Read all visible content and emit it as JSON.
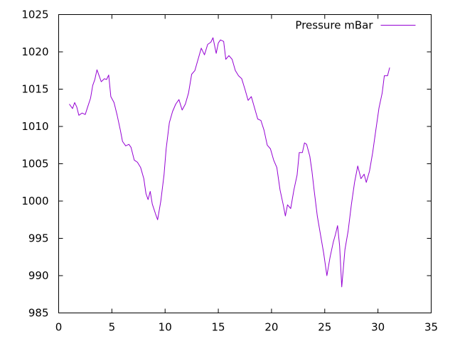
{
  "chart_data": {
    "type": "line",
    "title": "",
    "xlabel": "",
    "ylabel": "",
    "xlim": [
      0,
      35
    ],
    "ylim": [
      985,
      1025
    ],
    "xticks": [
      0,
      5,
      10,
      15,
      20,
      25,
      30,
      35
    ],
    "yticks": [
      985,
      990,
      995,
      1000,
      1005,
      1010,
      1015,
      1020,
      1025
    ],
    "grid": false,
    "legend_position": "top-right",
    "series": [
      {
        "name": "Pressure mBar",
        "color": "#9400d3",
        "points": [
          [
            1.0,
            1013.0
          ],
          [
            1.3,
            1012.4
          ],
          [
            1.5,
            1013.2
          ],
          [
            1.7,
            1012.6
          ],
          [
            1.9,
            1011.5
          ],
          [
            2.2,
            1011.8
          ],
          [
            2.5,
            1011.6
          ],
          [
            2.7,
            1012.5
          ],
          [
            3.0,
            1013.8
          ],
          [
            3.2,
            1015.5
          ],
          [
            3.4,
            1016.3
          ],
          [
            3.6,
            1017.6
          ],
          [
            3.8,
            1016.8
          ],
          [
            4.0,
            1016.0
          ],
          [
            4.3,
            1016.4
          ],
          [
            4.5,
            1016.3
          ],
          [
            4.7,
            1016.9
          ],
          [
            4.9,
            1014.0
          ],
          [
            5.2,
            1013.2
          ],
          [
            5.5,
            1011.5
          ],
          [
            5.8,
            1009.5
          ],
          [
            6.0,
            1008.0
          ],
          [
            6.3,
            1007.4
          ],
          [
            6.6,
            1007.6
          ],
          [
            6.8,
            1007.2
          ],
          [
            7.1,
            1005.5
          ],
          [
            7.4,
            1005.2
          ],
          [
            7.7,
            1004.5
          ],
          [
            8.0,
            1003.0
          ],
          [
            8.2,
            1001.0
          ],
          [
            8.4,
            1000.2
          ],
          [
            8.6,
            1001.3
          ],
          [
            8.8,
            999.6
          ],
          [
            9.1,
            998.3
          ],
          [
            9.3,
            997.5
          ],
          [
            9.6,
            1000.0
          ],
          [
            9.9,
            1003.5
          ],
          [
            10.1,
            1007.0
          ],
          [
            10.4,
            1010.5
          ],
          [
            10.7,
            1012.0
          ],
          [
            11.0,
            1013.0
          ],
          [
            11.3,
            1013.6
          ],
          [
            11.6,
            1012.2
          ],
          [
            11.9,
            1013.0
          ],
          [
            12.2,
            1014.5
          ],
          [
            12.5,
            1017.0
          ],
          [
            12.8,
            1017.5
          ],
          [
            13.1,
            1019.0
          ],
          [
            13.4,
            1020.5
          ],
          [
            13.7,
            1019.6
          ],
          [
            14.0,
            1021.0
          ],
          [
            14.3,
            1021.3
          ],
          [
            14.5,
            1021.9
          ],
          [
            14.8,
            1019.8
          ],
          [
            15.0,
            1021.2
          ],
          [
            15.2,
            1021.6
          ],
          [
            15.5,
            1021.4
          ],
          [
            15.7,
            1019.0
          ],
          [
            16.0,
            1019.5
          ],
          [
            16.3,
            1019.0
          ],
          [
            16.6,
            1017.5
          ],
          [
            16.9,
            1016.8
          ],
          [
            17.2,
            1016.4
          ],
          [
            17.5,
            1015.0
          ],
          [
            17.8,
            1013.5
          ],
          [
            18.1,
            1014.0
          ],
          [
            18.4,
            1012.5
          ],
          [
            18.7,
            1011.0
          ],
          [
            19.0,
            1010.8
          ],
          [
            19.3,
            1009.5
          ],
          [
            19.6,
            1007.5
          ],
          [
            19.9,
            1007.0
          ],
          [
            20.2,
            1005.5
          ],
          [
            20.5,
            1004.5
          ],
          [
            20.8,
            1001.5
          ],
          [
            21.1,
            999.5
          ],
          [
            21.3,
            998.0
          ],
          [
            21.5,
            999.5
          ],
          [
            21.8,
            999.0
          ],
          [
            22.1,
            1001.5
          ],
          [
            22.4,
            1003.5
          ],
          [
            22.6,
            1006.5
          ],
          [
            22.9,
            1006.5
          ],
          [
            23.1,
            1007.8
          ],
          [
            23.3,
            1007.6
          ],
          [
            23.6,
            1006.0
          ],
          [
            23.8,
            1004.0
          ],
          [
            24.0,
            1001.5
          ],
          [
            24.3,
            998.0
          ],
          [
            24.6,
            995.5
          ],
          [
            24.9,
            993.0
          ],
          [
            25.2,
            990.0
          ],
          [
            25.5,
            992.5
          ],
          [
            25.8,
            994.5
          ],
          [
            26.0,
            995.5
          ],
          [
            26.2,
            996.7
          ],
          [
            26.4,
            994.0
          ],
          [
            26.6,
            988.5
          ],
          [
            26.9,
            993.5
          ],
          [
            27.2,
            996.0
          ],
          [
            27.5,
            999.5
          ],
          [
            27.8,
            1002.5
          ],
          [
            28.1,
            1004.7
          ],
          [
            28.4,
            1003.0
          ],
          [
            28.7,
            1003.6
          ],
          [
            28.9,
            1002.5
          ],
          [
            29.2,
            1004.0
          ],
          [
            29.5,
            1006.5
          ],
          [
            29.8,
            1009.5
          ],
          [
            30.1,
            1012.5
          ],
          [
            30.4,
            1014.5
          ],
          [
            30.6,
            1016.8
          ],
          [
            30.9,
            1016.8
          ],
          [
            31.1,
            1017.9
          ]
        ]
      }
    ]
  }
}
